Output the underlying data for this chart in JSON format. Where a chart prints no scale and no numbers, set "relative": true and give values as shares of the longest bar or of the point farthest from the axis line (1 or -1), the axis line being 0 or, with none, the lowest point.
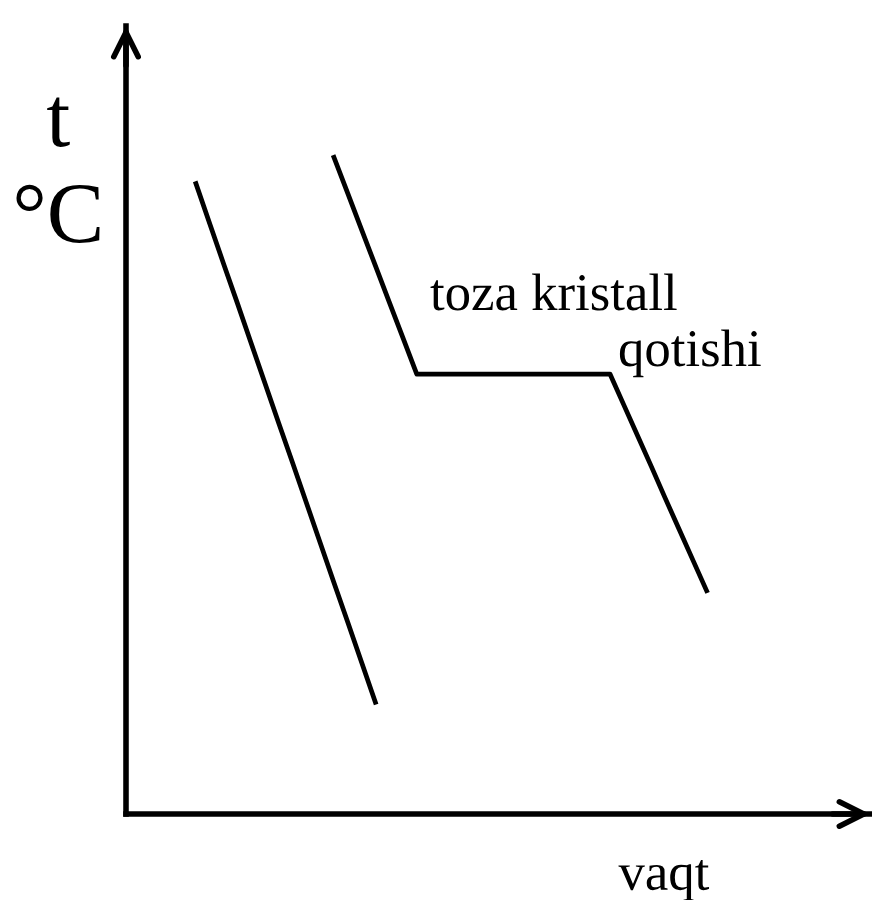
{
  "chart_data": {
    "type": "line",
    "relative": true,
    "xlabel": "vaqt",
    "ylabel": "t\n°C",
    "annotations": [
      "toza kristall",
      "qotishi"
    ],
    "marker": "none",
    "line_style": "solid",
    "categories": [
      null,
      null,
      null,
      null,
      null,
      null,
      null,
      null,
      null,
      null,
      null,
      null,
      null,
      null,
      null,
      null,
      null,
      null,
      null,
      null,
      null,
      null,
      null,
      null,
      null,
      null,
      null,
      null,
      null,
      null,
      null,
      null,
      null,
      null,
      null,
      null,
      null,
      null
    ],
    "series": [
      {
        "color": "#000000",
        "values": [
          0.96,
          0.899,
          0.838,
          0.778,
          0.717,
          0.656,
          0.595,
          0.535,
          0.474,
          0.413,
          0.352,
          0.292,
          0.231,
          0.17,
          null,
          null,
          null,
          null,
          null,
          null,
          null,
          null,
          null,
          null,
          null,
          null,
          null,
          null,
          null,
          null,
          null,
          null,
          null,
          null,
          null,
          null,
          null,
          null
        ]
      },
      {
        "color": "#000000",
        "values": [
          null,
          null,
          null,
          null,
          null,
          null,
          null,
          null,
          null,
          null,
          1,
          0.945,
          0.89,
          0.835,
          0.78,
          0.725,
          0.67,
          0.67,
          0.67,
          0.67,
          0.67,
          0.67,
          0.67,
          0.67,
          0.67,
          0.67,
          0.67,
          0.67,
          0.67,
          0.67,
          0.67,
          0.623,
          0.576,
          0.529,
          0.481,
          0.434,
          0.387,
          0.34
        ]
      }
    ]
  }
}
